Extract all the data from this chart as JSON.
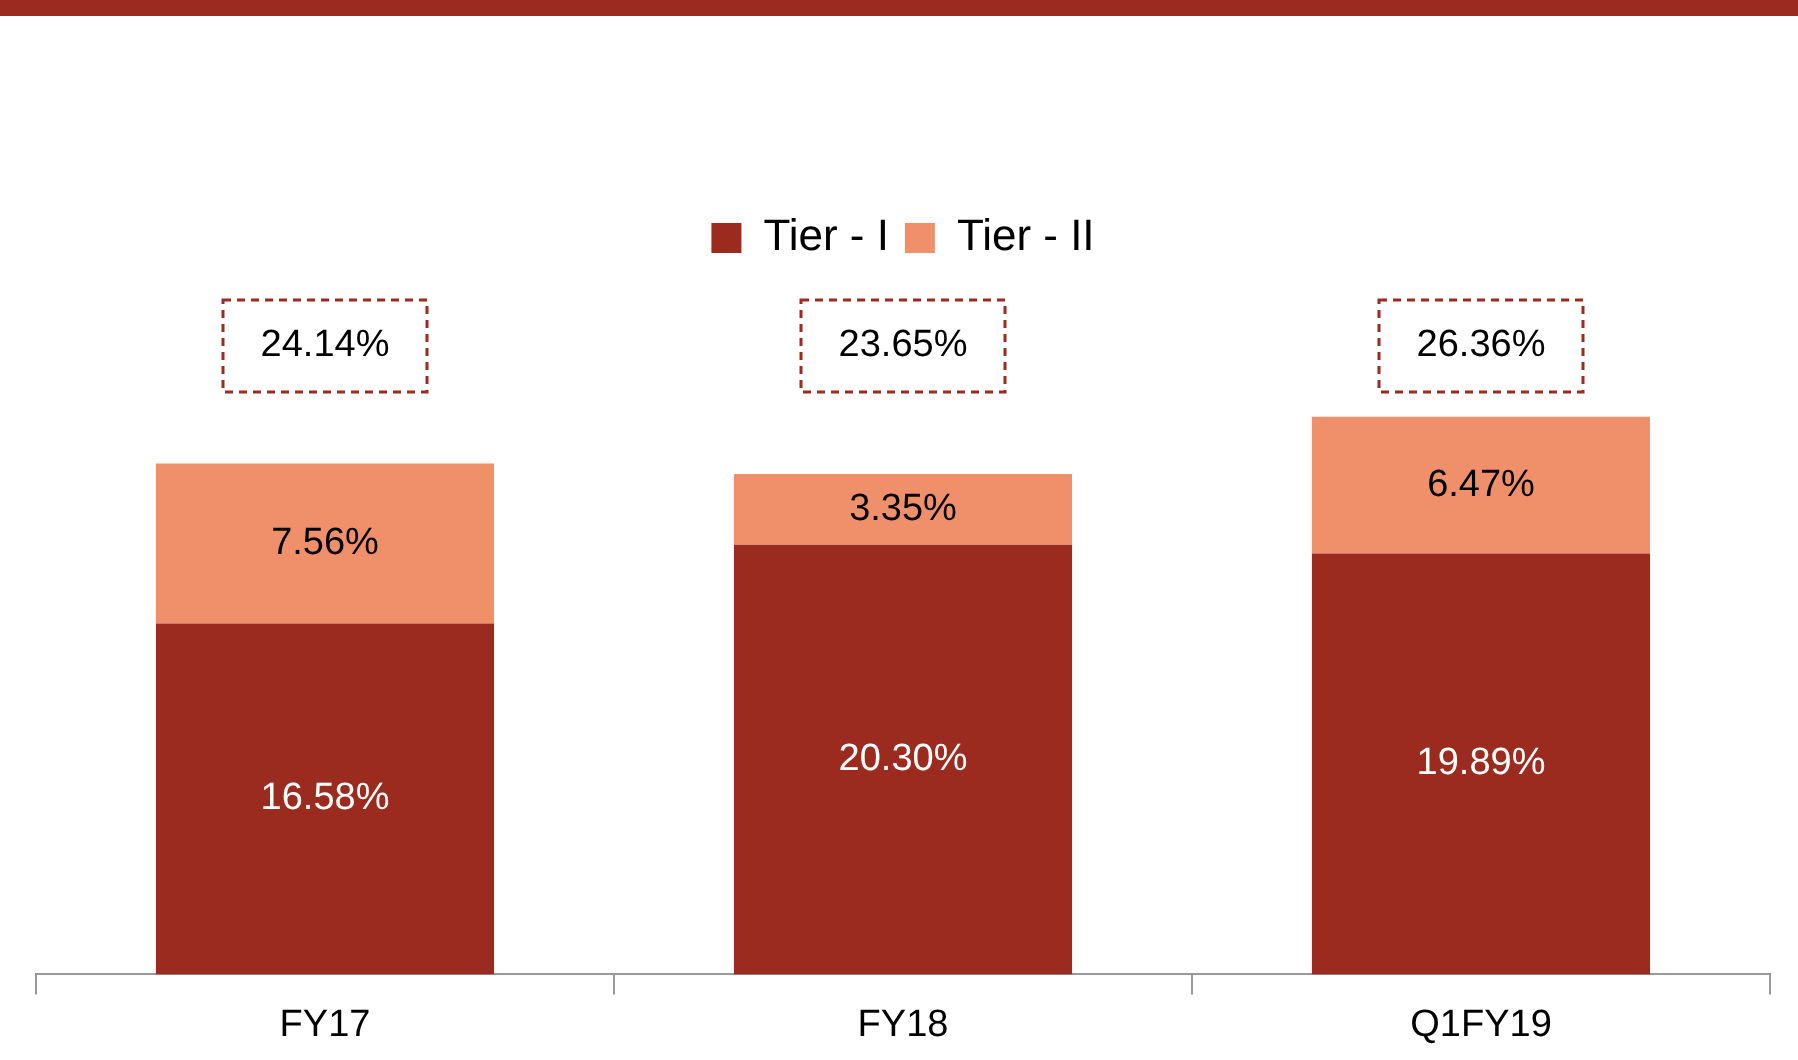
{
  "chart_data": {
    "type": "bar",
    "stacked": true,
    "categories": [
      "FY17",
      "FY18",
      "Q1FY19"
    ],
    "series": [
      {
        "name": "Tier - I",
        "color": "#9b2a1f",
        "values": [
          16.58,
          20.3,
          19.89
        ],
        "value_labels": [
          "16.58%",
          "20.30%",
          "19.89%"
        ]
      },
      {
        "name": "Tier - II",
        "color": "#f0906a",
        "values": [
          7.56,
          3.35,
          6.47
        ],
        "value_labels": [
          "7.56%",
          "3.35%",
          "6.47%"
        ]
      }
    ],
    "totals": [
      "24.14%",
      "23.65%",
      "26.36%"
    ],
    "legend": "top",
    "grid": false
  }
}
